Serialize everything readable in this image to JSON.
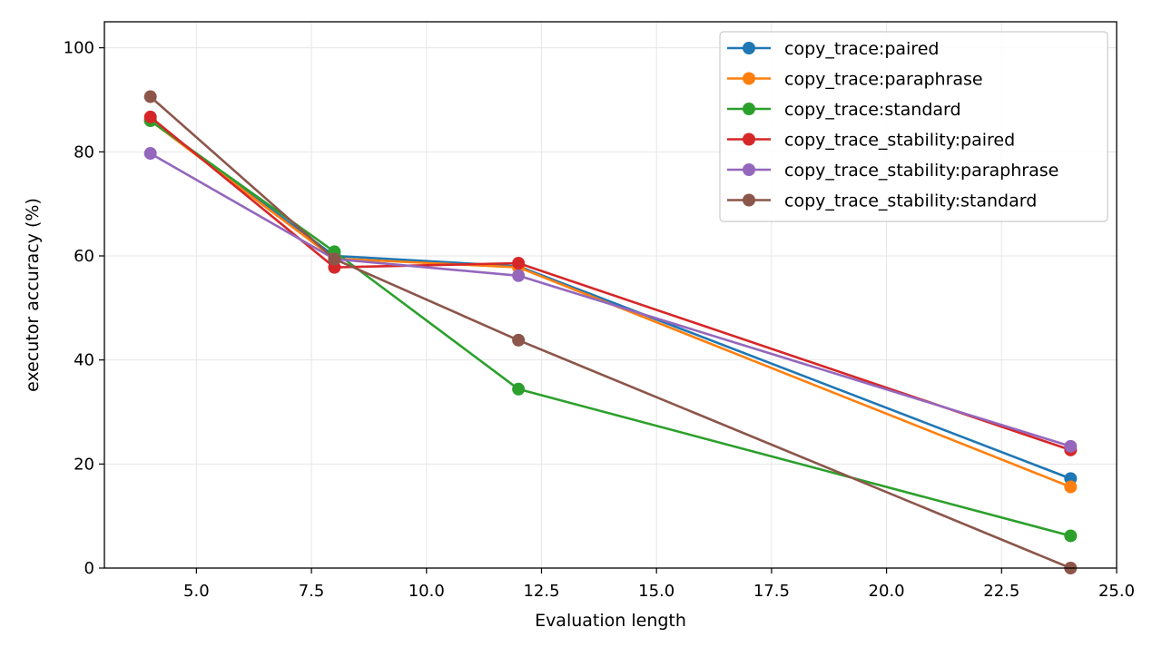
{
  "chart_data": {
    "type": "line",
    "title": "",
    "xlabel": "Evaluation length",
    "ylabel": "executor accuracy (%)",
    "x": [
      4,
      8,
      12,
      24
    ],
    "xlim": [
      3,
      25
    ],
    "ylim": [
      0,
      105
    ],
    "xticks": [
      5.0,
      7.5,
      10.0,
      12.5,
      15.0,
      17.5,
      20.0,
      22.5,
      25.0
    ],
    "xtick_labels": [
      "5.0",
      "7.5",
      "10.0",
      "12.5",
      "15.0",
      "17.5",
      "20.0",
      "22.5",
      "25.0"
    ],
    "yticks": [
      0,
      20,
      40,
      60,
      80,
      100
    ],
    "ytick_labels": [
      "0",
      "20",
      "40",
      "60",
      "80",
      "100"
    ],
    "grid": true,
    "legend_position": "top-right",
    "series": [
      {
        "name": "copy_trace:paired",
        "color": "#1f77b4",
        "values": [
          86.0,
          60.0,
          58.0,
          17.2
        ]
      },
      {
        "name": "copy_trace:paraphrase",
        "color": "#ff7f0e",
        "values": [
          86.0,
          59.5,
          57.8,
          15.6
        ]
      },
      {
        "name": "copy_trace:standard",
        "color": "#2ca02c",
        "values": [
          86.0,
          60.8,
          34.4,
          6.2
        ]
      },
      {
        "name": "copy_trace_stability:paired",
        "color": "#d62728",
        "values": [
          86.7,
          57.8,
          58.6,
          22.7
        ]
      },
      {
        "name": "copy_trace_stability:paraphrase",
        "color": "#9467bd",
        "values": [
          79.7,
          59.4,
          56.2,
          23.4
        ]
      },
      {
        "name": "copy_trace_stability:standard",
        "color": "#8c564b",
        "values": [
          90.6,
          59.4,
          43.8,
          0.0
        ]
      }
    ]
  }
}
